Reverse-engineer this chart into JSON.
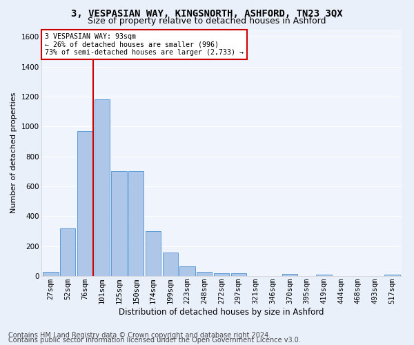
{
  "title1": "3, VESPASIAN WAY, KINGSNORTH, ASHFORD, TN23 3QX",
  "title2": "Size of property relative to detached houses in Ashford",
  "xlabel": "Distribution of detached houses by size in Ashford",
  "ylabel": "Number of detached properties",
  "footer1": "Contains HM Land Registry data © Crown copyright and database right 2024.",
  "footer2": "Contains public sector information licensed under the Open Government Licence v3.0.",
  "annotation_line1": "3 VESPASIAN WAY: 93sqm",
  "annotation_line2": "← 26% of detached houses are smaller (996)",
  "annotation_line3": "73% of semi-detached houses are larger (2,733) →",
  "bar_categories": [
    "27sqm",
    "52sqm",
    "76sqm",
    "101sqm",
    "125sqm",
    "150sqm",
    "174sqm",
    "199sqm",
    "223sqm",
    "248sqm",
    "272sqm",
    "297sqm",
    "321sqm",
    "346sqm",
    "370sqm",
    "395sqm",
    "419sqm",
    "444sqm",
    "468sqm",
    "493sqm",
    "517sqm"
  ],
  "bar_values": [
    30,
    320,
    970,
    1180,
    700,
    700,
    300,
    155,
    65,
    30,
    20,
    20,
    0,
    0,
    15,
    0,
    10,
    0,
    0,
    0,
    10
  ],
  "bar_color": "#aec6e8",
  "bar_edge_color": "#5b9bd5",
  "vline_x": 2.5,
  "vline_color": "#cc0000",
  "ylim": [
    0,
    1650
  ],
  "yticks": [
    0,
    200,
    400,
    600,
    800,
    1000,
    1200,
    1400,
    1600
  ],
  "bg_color": "#eaf0fa",
  "plot_bg_color": "#f0f4fc",
  "grid_color": "#ffffff",
  "annotation_box_color": "#cc0000",
  "title1_fontsize": 10,
  "title2_fontsize": 9,
  "xlabel_fontsize": 8.5,
  "ylabel_fontsize": 8,
  "tick_fontsize": 7.5,
  "footer_fontsize": 7
}
